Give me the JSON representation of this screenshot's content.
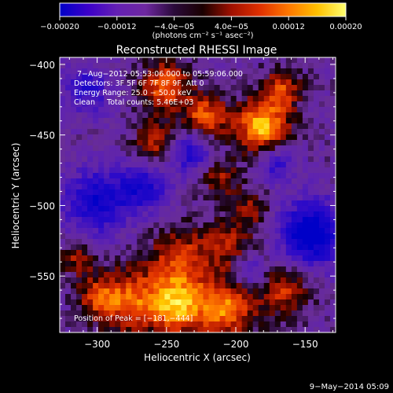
{
  "chart_data": {
    "type": "heatmap",
    "title": "Reconstructed RHESSI Image",
    "xlabel": "Heliocentric X (arcsec)",
    "ylabel": "Heliocentric Y (arcsec)",
    "xlim": [
      -327,
      -128
    ],
    "ylim": [
      -590,
      -395
    ],
    "xticks": [
      -300,
      -250,
      -200,
      -150
    ],
    "xtick_labels": [
      "−300",
      "−250",
      "−200",
      "−150"
    ],
    "yticks": [
      -400,
      -450,
      -500,
      -550
    ],
    "ytick_labels": [
      "−400",
      "−450",
      "−500",
      "−550"
    ],
    "colorbar": {
      "range": [
        -0.0002,
        0.0002
      ],
      "ticks": [
        -0.0002,
        -0.00012,
        -4e-05,
        4e-05,
        0.00012,
        0.0002
      ],
      "tick_labels": [
        "−0.00020",
        "−0.00012",
        "−4.0e−05",
        "4.0e−05",
        "0.00012",
        "0.00020"
      ],
      "unit_label": "(photons cm⁻² s⁻¹ asec⁻²)",
      "colors": [
        "#0000c8",
        "#3c00c8",
        "#6420b4",
        "#6e28a0",
        "#2a0a3a",
        "#1a0000",
        "#a01000",
        "#e03000",
        "#ff7800",
        "#ffc000",
        "#ffff70"
      ]
    },
    "annotations": [
      "7−Aug−2012 05:53:06.000 to 05:59:06.000",
      "Detectors: 3F 5F 6F 7F 8F 9F, Att 0",
      "Energy Range: 25.0 − 50.0 keV",
      "Clean     Total counts: 5.46E+03"
    ],
    "peak_label": "Position of Peak = [−181,−444]",
    "peak": [
      -181,
      -444
    ],
    "hotspots": [
      {
        "x": -181,
        "y": -444,
        "sigma": 13,
        "amp": 1.0
      },
      {
        "x": -222,
        "y": -437,
        "sigma": 11,
        "amp": 0.75
      },
      {
        "x": -251,
        "y": -415,
        "sigma": 12,
        "amp": 0.75
      },
      {
        "x": -167,
        "y": -418,
        "sigma": 10,
        "amp": 0.6
      },
      {
        "x": -258,
        "y": -455,
        "sigma": 11,
        "amp": 0.55
      },
      {
        "x": -212,
        "y": -480,
        "sigma": 10,
        "amp": 0.45
      },
      {
        "x": -189,
        "y": -503,
        "sigma": 10,
        "amp": 0.4
      },
      {
        "x": -240,
        "y": -538,
        "sigma": 16,
        "amp": 0.6
      },
      {
        "x": -205,
        "y": -528,
        "sigma": 12,
        "amp": 0.45
      },
      {
        "x": -277,
        "y": -568,
        "sigma": 16,
        "amp": 0.7
      },
      {
        "x": -243,
        "y": -571,
        "sigma": 14,
        "amp": 0.9
      },
      {
        "x": -207,
        "y": -573,
        "sigma": 15,
        "amp": 0.8
      },
      {
        "x": -165,
        "y": -560,
        "sigma": 13,
        "amp": 0.55
      },
      {
        "x": -314,
        "y": -537,
        "sigma": 9,
        "amp": 0.45
      },
      {
        "x": -300,
        "y": -565,
        "sigma": 10,
        "amp": 0.5
      }
    ],
    "coldspots": [
      {
        "x": -300,
        "y": -497,
        "sigma": 16,
        "amp": 0.7
      },
      {
        "x": -267,
        "y": -487,
        "sigma": 12,
        "amp": 0.6
      },
      {
        "x": -233,
        "y": -462,
        "sigma": 11,
        "amp": 0.6
      },
      {
        "x": -145,
        "y": -520,
        "sigma": 16,
        "amp": 0.95
      },
      {
        "x": -190,
        "y": -548,
        "sigma": 9,
        "amp": 0.4
      },
      {
        "x": -307,
        "y": -418,
        "sigma": 12,
        "amp": 0.5
      },
      {
        "x": -170,
        "y": -470,
        "sigma": 10,
        "amp": 0.45
      }
    ],
    "grid": false
  },
  "footer": {
    "date": "9−May−2014 05:09"
  }
}
